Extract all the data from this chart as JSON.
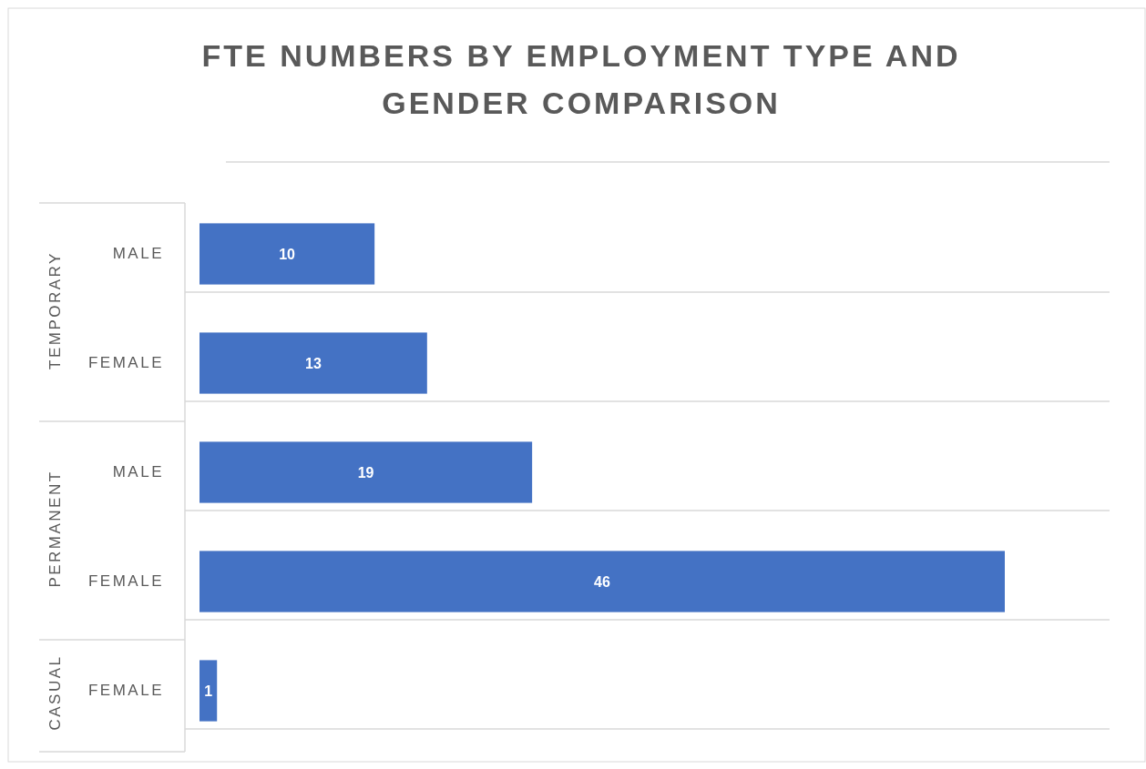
{
  "chart_data": {
    "type": "bar",
    "orientation": "horizontal",
    "title": "FTE NUMBERS BY EMPLOYMENT TYPE AND GENDER COMPARISON",
    "categories": [
      "MALE",
      "FEMALE",
      "MALE",
      "FEMALE",
      "FEMALE"
    ],
    "values": [
      10,
      13,
      19,
      46,
      1
    ],
    "color": "#4472c4",
    "data_labels": true,
    "grid": "y",
    "annotations": [
      "TEMPORARY",
      "PERMANENT",
      "CASUAL"
    ]
  }
}
